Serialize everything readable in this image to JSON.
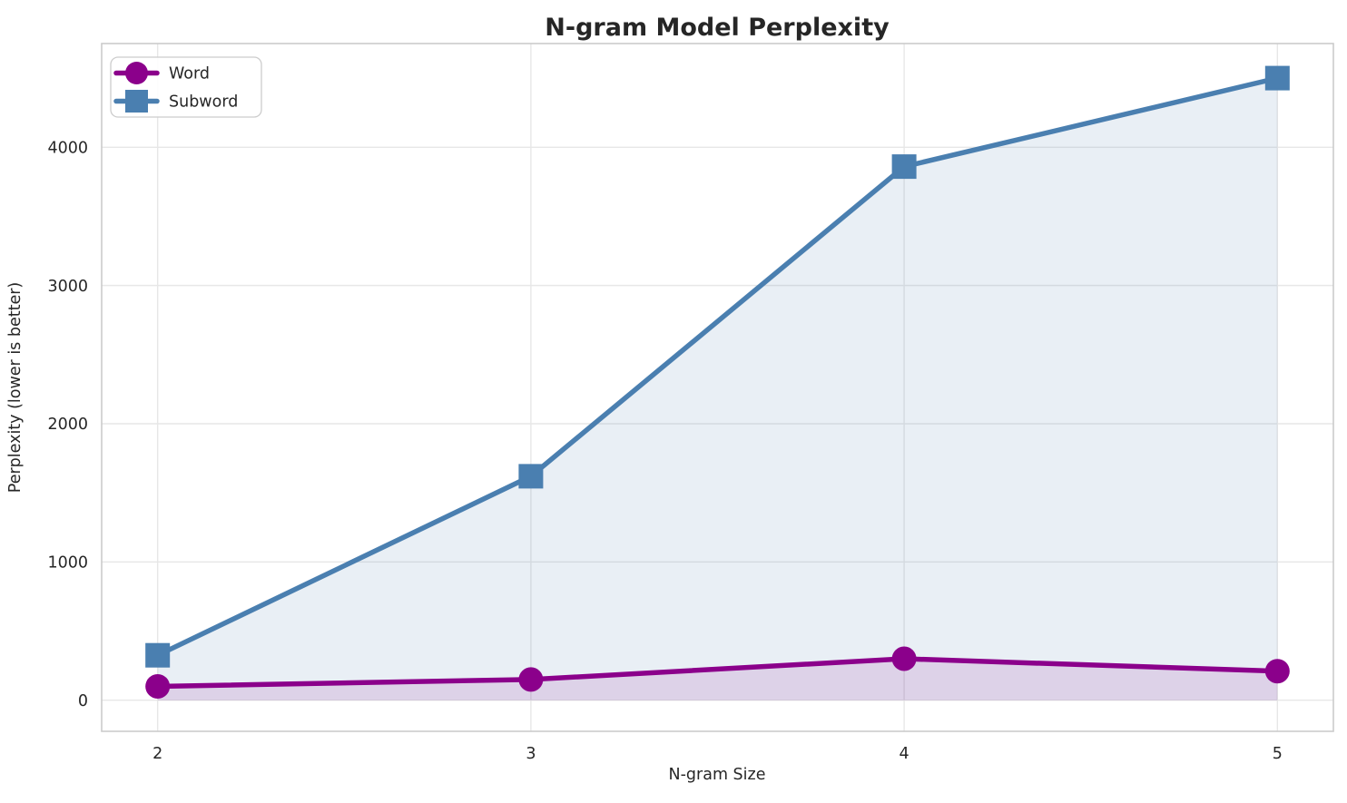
{
  "chart_data": {
    "type": "line",
    "title": "N-gram Model Perplexity",
    "xlabel": "N-gram Size",
    "ylabel": "Perplexity (lower is better)",
    "x": [
      2,
      3,
      4,
      5
    ],
    "series": [
      {
        "name": "Word",
        "values": [
          100,
          150,
          300,
          210
        ],
        "color": "#8B008B",
        "marker": "circle"
      },
      {
        "name": "Subword",
        "values": [
          325,
          1620,
          3860,
          4500
        ],
        "color": "#4A7FB0",
        "marker": "square"
      }
    ],
    "xticks": [
      "2",
      "3",
      "4",
      "5"
    ],
    "xtick_values": [
      2,
      3,
      4,
      5
    ],
    "yticks": [
      "0",
      "1000",
      "2000",
      "3000",
      "4000"
    ],
    "ytick_values": [
      0,
      1000,
      2000,
      3000,
      4000
    ],
    "xlim": [
      1.85,
      5.15
    ],
    "ylim": [
      -225,
      4750
    ],
    "grid": true,
    "area_fill": true,
    "area_fill_alpha": 0.12,
    "fill_baseline": 0,
    "legend": {
      "position": "upper left",
      "labels": [
        "Word",
        "Subword"
      ]
    },
    "colors": {
      "grid": "#E7E7E7",
      "spine": "#CBCBCB",
      "text": "#262626",
      "legend_border": "#CCCCCC",
      "background": "#FFFFFF"
    }
  }
}
